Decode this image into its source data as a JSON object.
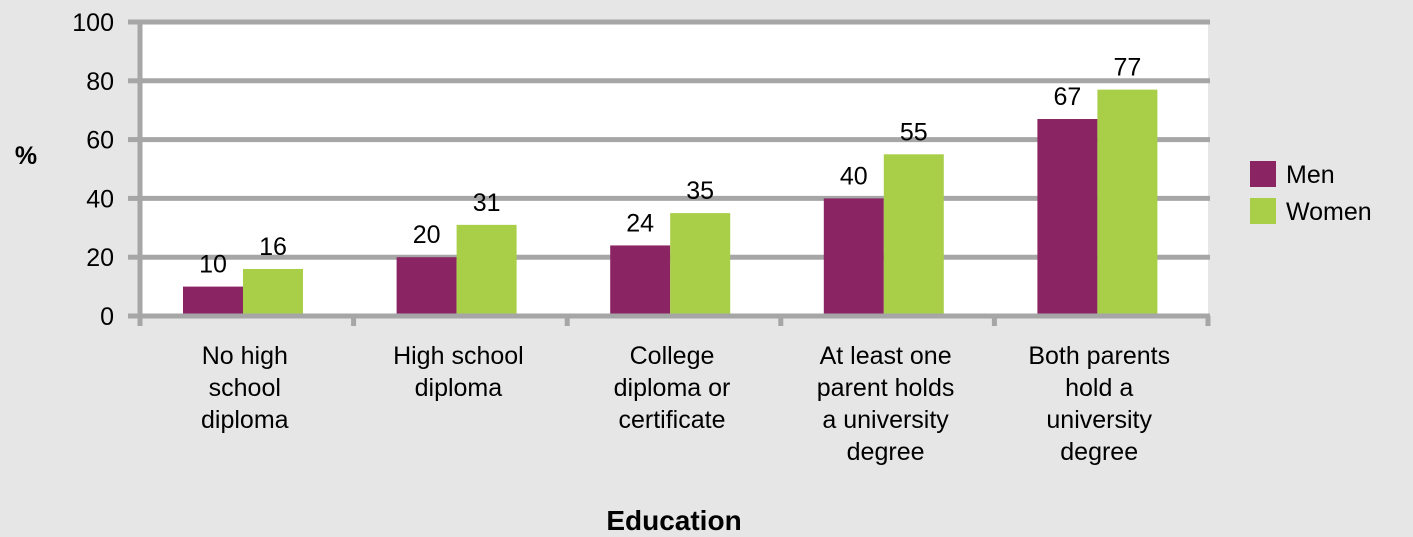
{
  "colors": {
    "background": "#e6e6e6",
    "plot_area": "#ffffff",
    "gridline": "#a6a6a6",
    "axis": "#a6a6a6",
    "men": "#8b2463",
    "women": "#a9cf49",
    "text": "#000000"
  },
  "chart_data": {
    "type": "bar",
    "title": "",
    "xlabel": "Education",
    "ylabel": "%",
    "ylim": [
      0,
      100
    ],
    "yticks": [
      0,
      20,
      40,
      60,
      80,
      100
    ],
    "grid": true,
    "legend_position": "right",
    "categories": [
      [
        "No high",
        "school",
        "diploma"
      ],
      [
        "High school",
        "diploma"
      ],
      [
        "College",
        "diploma or",
        "certificate"
      ],
      [
        "At least one",
        "parent holds",
        "a university",
        "degree"
      ],
      [
        "Both parents",
        "hold a",
        "university",
        "degree"
      ]
    ],
    "series": [
      {
        "name": "Men",
        "color": "#8b2463",
        "values": [
          10,
          20,
          24,
          40,
          67
        ]
      },
      {
        "name": "Women",
        "color": "#a9cf49",
        "values": [
          16,
          31,
          35,
          55,
          77
        ]
      }
    ]
  }
}
